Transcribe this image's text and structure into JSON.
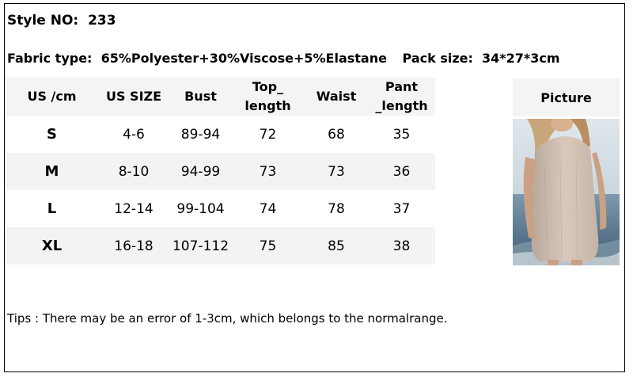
{
  "style_line": {
    "label": "Style NO:",
    "value": "233"
  },
  "fabric_line": {
    "fabric_label": "Fabric type:",
    "fabric_value": "65%Polyester+30%Viscose+5%Elastane",
    "pack_label": "Pack size:",
    "pack_value": "34*27*3cm"
  },
  "size_table": {
    "headers": [
      [
        "US /cm"
      ],
      [
        "US SIZE"
      ],
      [
        "Bust"
      ],
      [
        "Top_",
        "length"
      ],
      [
        "Waist"
      ],
      [
        "Pant",
        "_length"
      ]
    ],
    "rows": [
      [
        "S",
        "4-6",
        "89-94",
        "72",
        "68",
        "35"
      ],
      [
        "M",
        "8-10",
        "94-99",
        "73",
        "73",
        "36"
      ],
      [
        "L",
        "12-14",
        "99-104",
        "74",
        "78",
        "37"
      ],
      [
        "XL",
        "16-18",
        "107-112",
        "75",
        "85",
        "38"
      ]
    ]
  },
  "picture": {
    "header": "Picture"
  },
  "tips": "Tips : There may be an error of 1-3cm, which belongs to the normalrange.",
  "colors": {
    "header_bg": "#f4f4f4",
    "shaded_row_bg": "#f3f3f3",
    "border": "#000000"
  }
}
